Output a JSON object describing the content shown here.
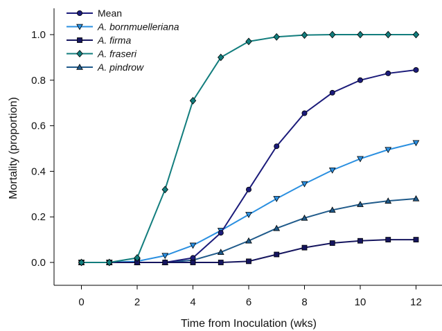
{
  "chart_data": {
    "type": "line",
    "xlabel": "Time from Inoculation (wks)",
    "ylabel": "Mortality (proportion)",
    "xlim": [
      -1,
      13
    ],
    "ylim": [
      -0.09,
      1.1
    ],
    "xticks": [
      0,
      2,
      4,
      6,
      8,
      10,
      12
    ],
    "yticks": [
      0.0,
      0.2,
      0.4,
      0.6,
      0.8,
      1.0
    ],
    "ytick_labels": [
      "0.0",
      "0.2",
      "0.4",
      "0.6",
      "0.8",
      "1.0"
    ],
    "legend_position": "top-left",
    "grid": false,
    "x": [
      0,
      1,
      2,
      3,
      4,
      5,
      6,
      7,
      8,
      9,
      10,
      11,
      12
    ],
    "series": [
      {
        "name": "Mean",
        "italic": false,
        "color": "#1b1b7a",
        "marker": "circle",
        "values": [
          0.0,
          0.0,
          0.0,
          0.0,
          0.02,
          0.13,
          0.32,
          0.51,
          0.655,
          0.745,
          0.8,
          0.83,
          0.845
        ]
      },
      {
        "name": "A. bornmuelleriana",
        "italic": true,
        "color": "#2a8fe0",
        "marker": "triangle-down",
        "values": [
          0.0,
          0.0,
          0.005,
          0.03,
          0.075,
          0.14,
          0.21,
          0.28,
          0.345,
          0.405,
          0.455,
          0.495,
          0.525
        ]
      },
      {
        "name": "A. firma",
        "italic": true,
        "color": "#15155e",
        "marker": "square",
        "values": [
          0.0,
          0.0,
          0.0,
          0.0,
          0.0,
          0.0,
          0.005,
          0.035,
          0.065,
          0.085,
          0.095,
          0.1,
          0.1
        ]
      },
      {
        "name": "A. fraseri",
        "italic": true,
        "color": "#127d7d",
        "marker": "diamond",
        "values": [
          0.0,
          0.0,
          0.02,
          0.32,
          0.71,
          0.9,
          0.97,
          0.99,
          0.998,
          1.0,
          1.0,
          1.0,
          1.0
        ]
      },
      {
        "name": "A. pindrow",
        "italic": true,
        "color": "#1f5a8a",
        "marker": "triangle-up",
        "values": [
          0.0,
          0.0,
          0.0,
          0.0,
          0.01,
          0.045,
          0.095,
          0.15,
          0.195,
          0.23,
          0.255,
          0.27,
          0.28
        ]
      }
    ]
  }
}
